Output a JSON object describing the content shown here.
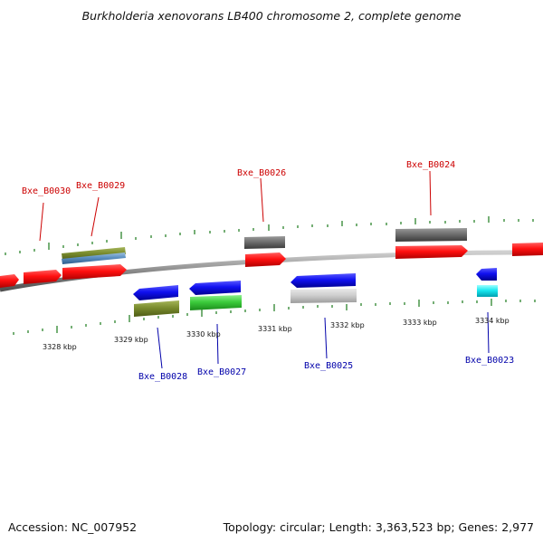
{
  "title": "Burkholderia xenovorans LB400 chromosome 2, complete genome",
  "footer": {
    "accession": "Accession: NC_007952",
    "summary": "Topology: circular; Length: 3,363,523 bp; Genes: 2,977"
  },
  "colors": {
    "forward_label": "#cc0000",
    "reverse_label": "#0000aa",
    "tick": "#1a7a1a",
    "backbone": "#8a8a8a"
  },
  "gene_labels": [
    {
      "id": "Bxe_B0030",
      "strand": "forward"
    },
    {
      "id": "Bxe_B0029",
      "strand": "forward"
    },
    {
      "id": "Bxe_B0026",
      "strand": "forward"
    },
    {
      "id": "Bxe_B0024",
      "strand": "forward"
    },
    {
      "id": "Bxe_B0028",
      "strand": "reverse"
    },
    {
      "id": "Bxe_B0027",
      "strand": "reverse"
    },
    {
      "id": "Bxe_B0025",
      "strand": "reverse"
    },
    {
      "id": "Bxe_B0023",
      "strand": "reverse"
    }
  ],
  "kbp_labels": [
    "3328 kbp",
    "3329 kbp",
    "3330 kbp",
    "3331 kbp",
    "3332 kbp",
    "3333 kbp",
    "3334 kbp"
  ]
}
